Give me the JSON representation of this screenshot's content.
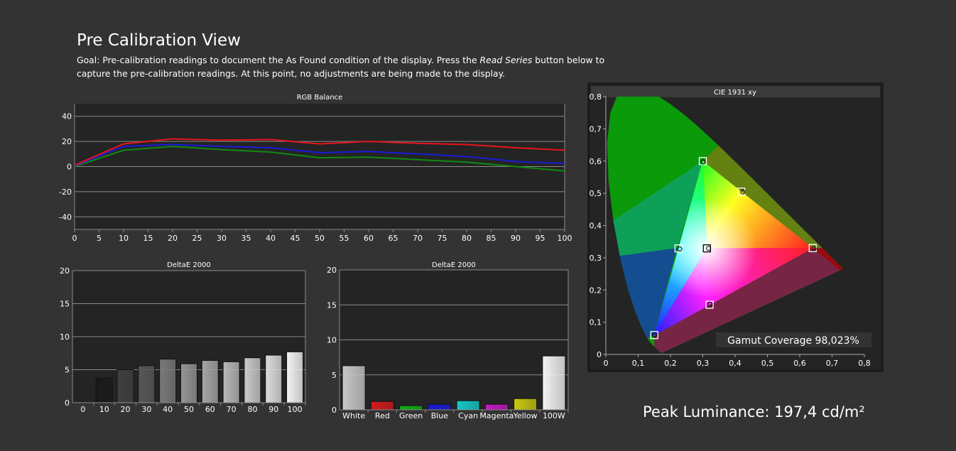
{
  "header": {
    "title": "Pre Calibration View",
    "goal_part1": "Goal: Pre-calibration readings to document the As Found condition of the display. Press the ",
    "goal_italic": "Read Series",
    "goal_part2": " button below to capture the pre-calibration readings. At this point, no adjustments are being made to the display."
  },
  "peak_luminance": "Peak Luminance: 197,4 cd/m²",
  "colors": {
    "background": "#333333",
    "plot_bg": "#242424",
    "grid": "#8a8a8a",
    "red": "#e8141c",
    "green": "#118a11",
    "blue": "#1a1ad8"
  },
  "chart_data": [
    {
      "id": "rgb",
      "type": "line",
      "title": "RGB Balance",
      "x": [
        0,
        10,
        20,
        30,
        40,
        50,
        60,
        70,
        80,
        90,
        100
      ],
      "xticks": [
        "0",
        "5",
        "10",
        "15",
        "20",
        "25",
        "30",
        "35",
        "40",
        "45",
        "50",
        "55",
        "60",
        "65",
        "70",
        "75",
        "80",
        "85",
        "90",
        "95",
        "100"
      ],
      "yticks": [
        "40",
        "20",
        "0",
        "-20",
        "-40"
      ],
      "ylim": [
        -50,
        50
      ],
      "xlim": [
        0,
        100
      ],
      "grid": true,
      "series": [
        {
          "key": "red",
          "color": "#e8141c",
          "values": [
            1,
            18,
            22,
            21,
            21.5,
            18,
            20,
            18.5,
            17.5,
            15,
            13
          ]
        },
        {
          "key": "blue",
          "color": "#1a1ad8",
          "values": [
            0.5,
            16,
            17.5,
            16,
            15,
            11,
            12,
            10,
            8,
            4,
            2.5
          ]
        },
        {
          "key": "green",
          "color": "#118a11",
          "values": [
            0,
            13,
            16,
            13.5,
            11.5,
            7,
            7.5,
            5.5,
            3.5,
            0,
            -3.5
          ]
        }
      ]
    },
    {
      "id": "gray",
      "type": "bar",
      "title": "DeltaE 2000",
      "categories": [
        "0",
        "10",
        "20",
        "30",
        "40",
        "50",
        "60",
        "70",
        "80",
        "90",
        "100"
      ],
      "values": [
        0,
        3.7,
        5.0,
        5.6,
        6.6,
        5.9,
        6.4,
        6.2,
        6.8,
        7.2,
        7.7
      ],
      "colors": [
        "#000000",
        "#1a1a1a",
        "#404040",
        "#585858",
        "#7a7a7a",
        "#959595",
        "#a6a6a6",
        "#b8b8b8",
        "#cacaca",
        "#dddddd",
        "#f4f4f4"
      ],
      "yticks": [
        "20",
        "15",
        "10",
        "5",
        "0"
      ],
      "ylim": [
        0,
        20
      ],
      "grid": true
    },
    {
      "id": "colors",
      "type": "bar",
      "title": "DeltaE 2000",
      "categories": [
        "White",
        "Red",
        "Green",
        "Blue",
        "Cyan",
        "Magenta",
        "Yellow",
        "100W"
      ],
      "values": [
        6.3,
        1.2,
        0.6,
        0.8,
        1.3,
        0.8,
        1.6,
        7.7
      ],
      "colors": [
        "#c8c8c8",
        "#d11a1a",
        "#10b010",
        "#1a1ad6",
        "#14c8c8",
        "#c418c4",
        "#c8c810",
        "#f4f4f4"
      ],
      "yticks": [
        "20",
        "15",
        "10",
        "5",
        "0"
      ],
      "ylim": [
        0,
        20
      ],
      "grid": true
    },
    {
      "id": "cie",
      "type": "scatter",
      "title": "CIE 1931 xy",
      "xlim": [
        0,
        0.8
      ],
      "ylim": [
        0,
        0.8
      ],
      "xticks": [
        "0",
        "0,1",
        "0,2",
        "0,3",
        "0,4",
        "0,5",
        "0,6",
        "0,7",
        "0,8"
      ],
      "yticks": [
        "0,8",
        "0,7",
        "0,6",
        "0,5",
        "0,4",
        "0,3",
        "0,2",
        "0,1",
        "0"
      ],
      "gamut_coverage": "Gamut Coverage 98,023%",
      "targets": [
        {
          "name": "Red",
          "x": 0.64,
          "y": 0.33
        },
        {
          "name": "Green",
          "x": 0.3,
          "y": 0.6
        },
        {
          "name": "Blue",
          "x": 0.15,
          "y": 0.06
        },
        {
          "name": "Cyan",
          "x": 0.225,
          "y": 0.329
        },
        {
          "name": "Magenta",
          "x": 0.321,
          "y": 0.154
        },
        {
          "name": "Yellow",
          "x": 0.419,
          "y": 0.505
        },
        {
          "name": "White",
          "x": 0.3127,
          "y": 0.329
        }
      ],
      "measured": [
        {
          "name": "Red",
          "x": 0.644,
          "y": 0.328
        },
        {
          "name": "Green",
          "x": 0.301,
          "y": 0.597
        },
        {
          "name": "Blue",
          "x": 0.151,
          "y": 0.061
        },
        {
          "name": "Cyan",
          "x": 0.229,
          "y": 0.327
        },
        {
          "name": "Magenta",
          "x": 0.322,
          "y": 0.156
        },
        {
          "name": "Yellow",
          "x": 0.424,
          "y": 0.504
        },
        {
          "name": "White",
          "x": 0.318,
          "y": 0.329
        }
      ]
    }
  ]
}
